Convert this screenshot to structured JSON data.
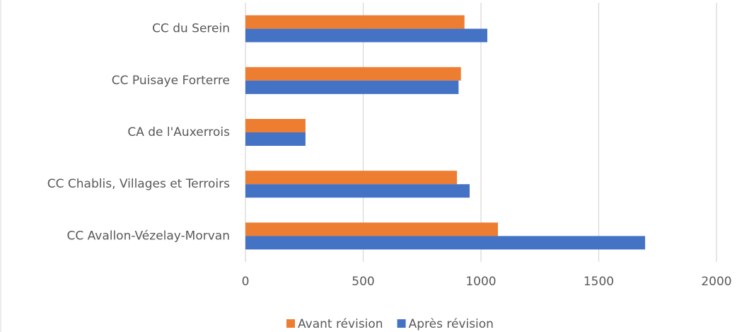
{
  "chart_data": {
    "type": "bar",
    "orientation": "horizontal",
    "categories": [
      "CC du Serein",
      "CC Puisaye Forterre",
      "CA de l'Auxerrois",
      "CC Chablis, Villages et Terroirs",
      "CC Avallon-Vézelay-Morvan"
    ],
    "series": [
      {
        "name": "Avant révision",
        "color": "#ed7d31",
        "values": [
          930,
          915,
          255,
          898,
          1072
        ]
      },
      {
        "name": "Après révision",
        "color": "#4472c4",
        "values": [
          1027,
          905,
          255,
          952,
          1697
        ]
      }
    ],
    "xlim": [
      0,
      2000
    ],
    "xticks": [
      0,
      500,
      1000,
      1500,
      2000
    ],
    "grid": true,
    "legend": "bottom"
  }
}
